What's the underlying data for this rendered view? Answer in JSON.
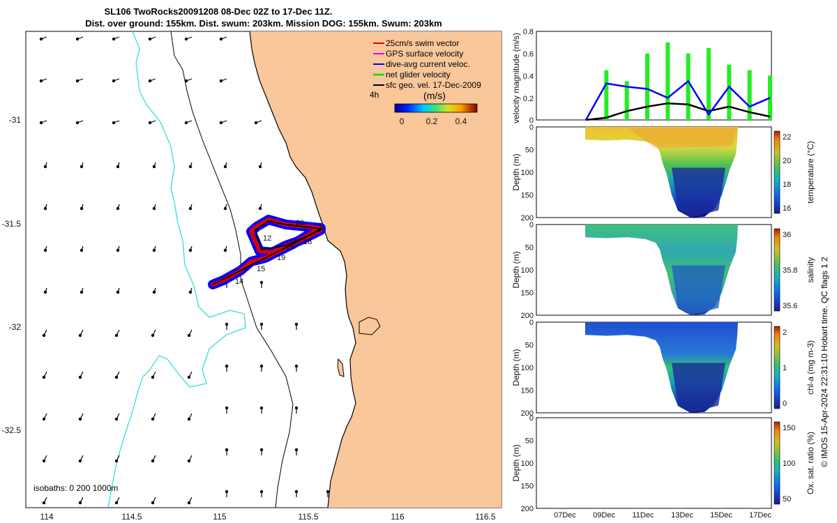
{
  "title": {
    "line1": "SL106 TwoRocks20091208 08-Dec 02Z to 17-Dec 11Z.",
    "line2": "Dist. over ground: 155km. Dist. swum: 203km. Mission DOG: 155km. Swum: 203km"
  },
  "map": {
    "legend": {
      "items": [
        {
          "label": "25cm/s swim vector",
          "color": "#dd0000"
        },
        {
          "label": "GPS surface velocity",
          "color": "#e000e0"
        },
        {
          "label": "dive-avg current veloc.",
          "color": "#0000ff"
        },
        {
          "label": "net glider velocity",
          "color": "#00dd00"
        },
        {
          "label": "sfc geo. vel. 17-Dec-2009",
          "color": "#000000"
        }
      ],
      "scale_label": "4h"
    },
    "colorbar": {
      "title": "(m/s)",
      "ticks": [
        "0",
        "0.2",
        "0.4"
      ]
    },
    "xticks": [
      "114",
      "114.5",
      "115",
      "115.5",
      "116",
      "116.5"
    ],
    "yticks": [
      "-31",
      "-31.5",
      "-32",
      "-32.5"
    ],
    "isobath_label": "isobaths: 0   200  1000m",
    "day_labels": [
      "14",
      "15",
      "19",
      "18",
      "16",
      "12",
      "20",
      "9"
    ],
    "colors": {
      "land": "#f9c79a",
      "isobath_1000": "#33dddd",
      "track_outer": "#0000ff",
      "track_inner": "#dd0000"
    }
  },
  "velocity_panel": {
    "ylabel": "velocity magnitude (m/s)",
    "yticks": [
      "0.8",
      "0.6",
      "0.4",
      "0.2",
      "0"
    ]
  },
  "section_panels": [
    {
      "ylabel": "Depth (m)",
      "depth_ticks": [
        "0",
        "50",
        "100",
        "150",
        "200"
      ],
      "var_label": "temperature (°C)",
      "cbar_ticks": [
        "22",
        "20",
        "18",
        "16"
      ]
    },
    {
      "ylabel": "Depth (m)",
      "depth_ticks": [
        "0",
        "50",
        "100",
        "150",
        "200"
      ],
      "var_label": "salinity",
      "cbar_ticks": [
        "36",
        "35.8",
        "35.6"
      ]
    },
    {
      "ylabel": "Depth (m)",
      "depth_ticks": [
        "0",
        "50",
        "100",
        "150",
        "200"
      ],
      "var_label": "chl-a (mg m-3)",
      "cbar_ticks": [
        "2",
        "1",
        "0"
      ]
    },
    {
      "ylabel": "Depth (m)",
      "depth_ticks": [
        "0",
        "50",
        "100",
        "150",
        "200"
      ],
      "var_label": "Ox. sat. ratio (%)",
      "cbar_ticks": [
        "150",
        "100",
        "50"
      ]
    }
  ],
  "time_ticks": [
    "07Dec",
    "09Dec",
    "11Dec",
    "13Dec",
    "15Dec",
    "17Dec"
  ],
  "side_note": "© IMOS 15-Apr-2024 22:31:10 Hobart time. QC flags 1  2",
  "chart_data": [
    {
      "type": "line",
      "title": "SL106 TwoRocks20091208 08-Dec 02Z to 17-Dec 11Z.",
      "ylabel": "velocity magnitude (m/s)",
      "ylim": [
        0,
        0.8
      ],
      "x": [
        "08Dec",
        "09Dec",
        "10Dec",
        "11Dec",
        "12Dec",
        "13Dec",
        "14Dec",
        "15Dec",
        "16Dec",
        "17Dec"
      ],
      "series": [
        {
          "name": "dive-avg current veloc.",
          "values": [
            0.0,
            0.33,
            0.3,
            0.28,
            0.2,
            0.35,
            0.05,
            0.3,
            0.12,
            0.2
          ]
        },
        {
          "name": "sfc geo. vel. 17-Dec-2009",
          "values": [
            0.0,
            0.02,
            0.08,
            0.12,
            0.15,
            0.14,
            0.08,
            0.12,
            0.07,
            0.03
          ]
        },
        {
          "name": "net glider velocity",
          "values": [
            0.0,
            0.45,
            0.35,
            0.6,
            0.7,
            0.6,
            0.65,
            0.5,
            0.45,
            0.4
          ]
        }
      ]
    },
    {
      "type": "heatmap",
      "ylabel": "Depth (m)",
      "value_label": "temperature (°C)",
      "ylim": [
        200,
        0
      ],
      "clim": [
        15,
        23.5
      ]
    },
    {
      "type": "heatmap",
      "ylabel": "Depth (m)",
      "value_label": "salinity",
      "ylim": [
        200,
        0
      ],
      "clim": [
        35.5,
        36.1
      ]
    },
    {
      "type": "heatmap",
      "ylabel": "Depth (m)",
      "value_label": "chl-a (mg m-3)",
      "ylim": [
        200,
        0
      ],
      "clim": [
        0,
        2
      ]
    },
    {
      "type": "heatmap",
      "ylabel": "Depth (m)",
      "value_label": "Ox. sat. ratio (%)",
      "ylim": [
        200,
        0
      ],
      "clim": [
        30,
        170
      ]
    }
  ]
}
